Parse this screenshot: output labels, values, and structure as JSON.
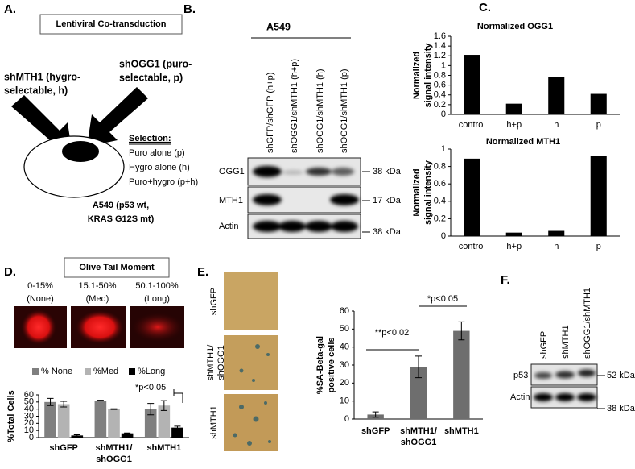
{
  "panels": {
    "a": {
      "label": "A.",
      "box": "Lentiviral Co-transduction",
      "vector1": [
        "shMTH1 (hygro-",
        "selectable, h)"
      ],
      "vector2": [
        "shOGG1 (puro-",
        "selectable, p)"
      ],
      "selection_title": "Selection:",
      "selection": [
        "Puro alone (p)",
        "Hygro alone (h)",
        "Puro+hygro (p+h)"
      ],
      "cell_line": [
        "A549 (p53 wt,",
        "KRAS G12S mt)"
      ]
    },
    "b": {
      "label": "B.",
      "cell_line": "A549",
      "lanes": [
        "shGFP/shGFP (h+p)",
        "shOGG1/shMTH1 (h+p)",
        "shOGG1/shMTH1 (h)",
        "shOGG1/shMTH1 (p)"
      ],
      "rows": [
        "OGG1",
        "MTH1",
        "Actin"
      ],
      "markers": [
        "38 kDa",
        "17 kDa",
        "38 kDa"
      ]
    },
    "c": {
      "label": "C."
    },
    "d": {
      "label": "D.",
      "box": "Olive Tail Moment",
      "bins": [
        [
          "0-15%",
          "(None)"
        ],
        [
          "15.1-50%",
          "(Med)"
        ],
        [
          "50.1-100%",
          "(Long)"
        ]
      ]
    },
    "e": {
      "label": "E.",
      "images": [
        [
          "shGFP"
        ],
        [
          "shMTH1/",
          "shOGG1"
        ],
        [
          "shMTH1"
        ]
      ]
    },
    "f": {
      "label": "F.",
      "lanes": [
        "shGFP",
        "shMTH1",
        "shOGG1/shMTH1"
      ],
      "rows": [
        "p53",
        "Actin"
      ],
      "markers": [
        "52 kDa",
        "38 kDa"
      ]
    }
  },
  "chart_data": [
    {
      "type": "bar",
      "title": "Normalized OGG1",
      "y_label": [
        "Normalized",
        "signal intensity"
      ],
      "categories": [
        [
          "control"
        ],
        [
          "h+p"
        ],
        [
          "h"
        ],
        [
          "p"
        ]
      ],
      "values": [
        1.22,
        0.22,
        0.77,
        0.42
      ],
      "color": "#000000",
      "ylim": [
        0,
        1.6
      ],
      "yticks": [
        0,
        0.2,
        0.4,
        0.6,
        0.8,
        1,
        1.2,
        1.4,
        1.6
      ]
    },
    {
      "type": "bar",
      "title": "Normalized MTH1",
      "y_label": [
        "Normalized",
        "signal intensity"
      ],
      "categories": [
        [
          "control"
        ],
        [
          "h+p"
        ],
        [
          "h"
        ],
        [
          "p"
        ]
      ],
      "values": [
        0.89,
        0.04,
        0.06,
        0.92
      ],
      "color": "#000000",
      "ylim": [
        0,
        1
      ],
      "yticks": [
        0,
        0.2,
        0.4,
        0.6,
        0.8,
        1
      ]
    },
    {
      "type": "bar",
      "y_label": [
        "%Total Cells"
      ],
      "categories": [
        [
          "shGFP"
        ],
        [
          "shMTH1/",
          "shOGG1"
        ],
        [
          "shMTH1"
        ]
      ],
      "series": [
        {
          "name": "% None",
          "color": "#7f7f7f",
          "values": [
            50,
            52,
            40
          ],
          "errors": [
            5,
            0.5,
            8
          ]
        },
        {
          "name": "%Med",
          "color": "#b3b3b3",
          "values": [
            47,
            40,
            45
          ],
          "errors": [
            4,
            0.5,
            7
          ]
        },
        {
          "name": "%Long",
          "color": "#000000",
          "values": [
            3,
            6,
            14
          ],
          "errors": [
            1,
            0.5,
            2
          ]
        }
      ],
      "ylim": [
        0,
        60
      ],
      "yticks": [
        0,
        10,
        20,
        30,
        40,
        50,
        60
      ],
      "annotations": [
        "*p<0.05"
      ]
    },
    {
      "type": "bar",
      "y_label": [
        "%SA-Beta-gal",
        "positive cells"
      ],
      "categories": [
        [
          "shGFP"
        ],
        [
          "shMTH1/",
          "shOGG1"
        ],
        [
          "shMTH1"
        ]
      ],
      "values": [
        2.5,
        29,
        49
      ],
      "errors": [
        1.5,
        6,
        5
      ],
      "color": "#6e6e6e",
      "ylim": [
        0,
        60
      ],
      "yticks": [
        0,
        10,
        20,
        30,
        40,
        50,
        60
      ],
      "annotations": [
        "**p<0.02",
        "*p<0.05"
      ]
    }
  ]
}
